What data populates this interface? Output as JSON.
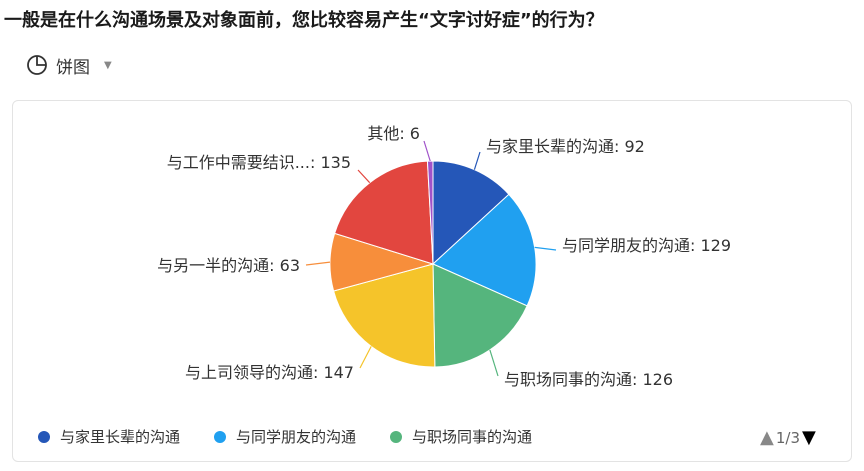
{
  "question": "一般是在什么沟通场景及对象面前，您比较容易产生“文字讨好症”的行为？",
  "chart_type_selector": {
    "label": "饼图",
    "icon": "pie-chart-icon",
    "dropdown_icon": "caret-down-icon"
  },
  "chart_data": {
    "type": "pie",
    "categories": [
      "与家里长辈的沟通",
      "与同学朋友的沟通",
      "与职场同事的沟通",
      "与上司领导的沟通",
      "与另一半的沟通",
      "与工作中需要结识...",
      "其他"
    ],
    "values": [
      92,
      129,
      126,
      147,
      63,
      135,
      6
    ],
    "colors": [
      "#2557b8",
      "#20a0f0",
      "#55b57d",
      "#f5c42a",
      "#f78e3b",
      "#e2463f",
      "#a052c9"
    ],
    "data_labels": [
      "与家里长辈的沟通: 92",
      "与同学朋友的沟通: 129",
      "与职场同事的沟通: 126",
      "与上司领导的沟通: 147",
      "与另一半的沟通: 63",
      "与工作中需要结识...: 135",
      "其他: 6"
    ]
  },
  "legend": {
    "items": [
      {
        "label": "与家里长辈的沟通",
        "color": "#2557b8"
      },
      {
        "label": "与同学朋友的沟通",
        "color": "#20a0f0"
      },
      {
        "label": "与职场同事的沟通",
        "color": "#55b57d"
      }
    ],
    "pager": {
      "text": "1/3",
      "prev_icon": "triangle-up-icon",
      "next_icon": "triangle-down-icon"
    }
  }
}
